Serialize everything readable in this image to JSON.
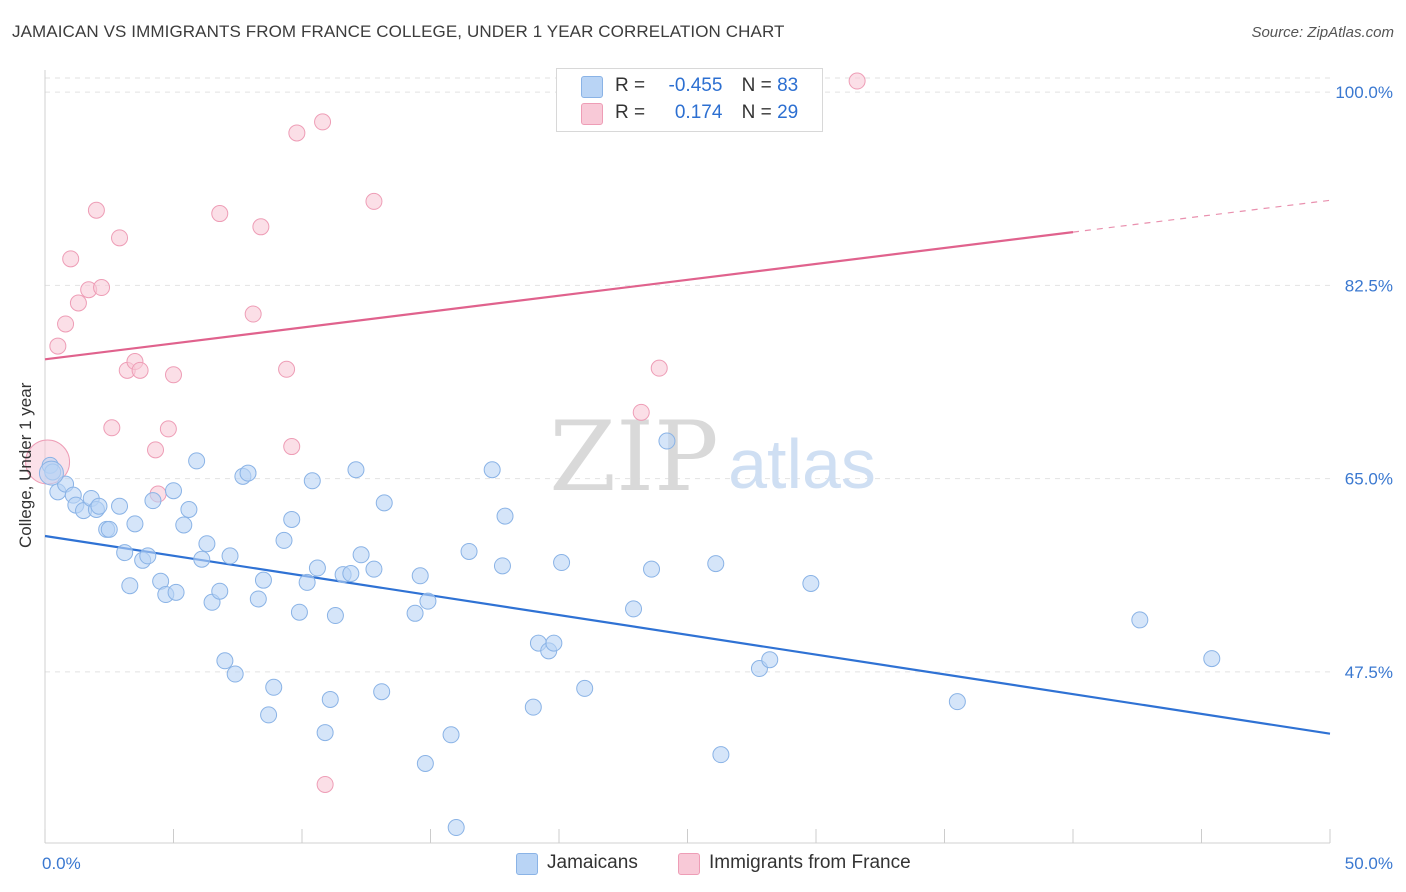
{
  "title": "JAMAICAN VS IMMIGRANTS FROM FRANCE COLLEGE, UNDER 1 YEAR CORRELATION CHART",
  "source": "Source: ZipAtlas.com",
  "watermark": {
    "zip": "ZIP",
    "atlas": "atlas"
  },
  "legend": {
    "r_label": "R =",
    "n_label": "N =",
    "jamaicans": {
      "r": "-0.455",
      "n": "83"
    },
    "france": {
      "r": "0.174",
      "n": "29"
    }
  },
  "colors": {
    "blue_fill": "#b9d4f5",
    "blue_stroke": "#8ab3e6",
    "blue_line": "#2f72d4",
    "pink_fill": "#f8c9d7",
    "pink_stroke": "#ee9db6",
    "pink_line": "#e0628d",
    "axis_label": "#3a78d0",
    "grid": "#e2e2e2"
  },
  "chart_data": {
    "type": "scatter",
    "title": "JAMAICAN VS IMMIGRANTS FROM FRANCE COLLEGE, UNDER 1 YEAR CORRELATION CHART",
    "xlabel": "",
    "ylabel": "College, Under 1 year",
    "xlim": [
      0,
      50
    ],
    "ylim": [
      32,
      102
    ],
    "x_tick_labels": [
      "0.0%",
      "50.0%"
    ],
    "y_ticks": [
      47.5,
      65.0,
      82.5,
      100.0
    ],
    "y_tick_labels": [
      "47.5%",
      "65.0%",
      "82.5%",
      "100.0%"
    ],
    "legend_placement": "bottom",
    "series": [
      {
        "name": "Jamaicans",
        "r": -0.455,
        "n": 83,
        "trend": {
          "x": [
            0,
            50
          ],
          "y": [
            59.8,
            41.9
          ],
          "dashed_from": null
        },
        "points": [
          [
            0.2,
            66.2
          ],
          [
            0.3,
            65.6
          ],
          [
            0.5,
            63.8
          ],
          [
            0.8,
            64.5
          ],
          [
            1.1,
            63.5
          ],
          [
            1.2,
            62.6
          ],
          [
            1.5,
            62.1
          ],
          [
            1.8,
            63.2
          ],
          [
            2.0,
            62.2
          ],
          [
            2.1,
            62.5
          ],
          [
            2.4,
            60.4
          ],
          [
            2.5,
            60.4
          ],
          [
            2.9,
            62.5
          ],
          [
            3.1,
            58.3
          ],
          [
            3.3,
            55.3
          ],
          [
            3.5,
            60.9
          ],
          [
            3.8,
            57.6
          ],
          [
            4.0,
            58.0
          ],
          [
            4.2,
            63.0
          ],
          [
            4.5,
            55.7
          ],
          [
            4.7,
            54.5
          ],
          [
            5.1,
            54.7
          ],
          [
            5.0,
            63.9
          ],
          [
            5.4,
            60.8
          ],
          [
            5.6,
            62.2
          ],
          [
            5.9,
            66.6
          ],
          [
            6.1,
            57.7
          ],
          [
            6.3,
            59.1
          ],
          [
            6.5,
            53.8
          ],
          [
            6.8,
            54.8
          ],
          [
            7.0,
            48.5
          ],
          [
            7.2,
            58.0
          ],
          [
            7.4,
            47.3
          ],
          [
            7.7,
            65.2
          ],
          [
            7.9,
            65.5
          ],
          [
            8.3,
            54.1
          ],
          [
            8.5,
            55.8
          ],
          [
            8.7,
            43.6
          ],
          [
            8.9,
            46.1
          ],
          [
            9.3,
            59.4
          ],
          [
            9.6,
            61.3
          ],
          [
            9.9,
            52.9
          ],
          [
            10.2,
            55.6
          ],
          [
            10.4,
            64.8
          ],
          [
            10.6,
            56.9
          ],
          [
            10.9,
            42.0
          ],
          [
            11.1,
            45.0
          ],
          [
            11.3,
            52.6
          ],
          [
            11.6,
            56.3
          ],
          [
            11.9,
            56.4
          ],
          [
            12.1,
            65.8
          ],
          [
            12.3,
            58.1
          ],
          [
            12.8,
            56.8
          ],
          [
            13.1,
            45.7
          ],
          [
            13.2,
            62.8
          ],
          [
            14.4,
            52.8
          ],
          [
            14.6,
            56.2
          ],
          [
            14.8,
            39.2
          ],
          [
            14.9,
            53.9
          ],
          [
            15.8,
            41.8
          ],
          [
            16.0,
            33.4
          ],
          [
            16.5,
            58.4
          ],
          [
            17.4,
            65.8
          ],
          [
            17.9,
            61.6
          ],
          [
            17.8,
            57.1
          ],
          [
            19.0,
            44.3
          ],
          [
            19.2,
            50.1
          ],
          [
            19.6,
            49.4
          ],
          [
            19.8,
            50.1
          ],
          [
            20.1,
            57.4
          ],
          [
            21.0,
            46.0
          ],
          [
            22.9,
            53.2
          ],
          [
            23.6,
            56.8
          ],
          [
            24.2,
            68.4
          ],
          [
            26.1,
            57.3
          ],
          [
            26.3,
            40.0
          ],
          [
            27.8,
            47.8
          ],
          [
            28.2,
            48.6
          ],
          [
            29.8,
            55.5
          ],
          [
            35.5,
            44.8
          ],
          [
            42.6,
            52.2
          ],
          [
            45.4,
            48.7
          ],
          [
            0.25,
            65.5
          ]
        ]
      },
      {
        "name": "Immigrants from France",
        "r": 0.174,
        "n": 29,
        "trend": {
          "x": [
            0,
            50
          ],
          "y": [
            75.8,
            90.2
          ],
          "dashed_from": 40
        },
        "points": [
          [
            0.1,
            66.5
          ],
          [
            0.5,
            77.0
          ],
          [
            0.8,
            79.0
          ],
          [
            1.0,
            84.9
          ],
          [
            1.3,
            80.9
          ],
          [
            1.7,
            82.1
          ],
          [
            2.0,
            89.3
          ],
          [
            2.2,
            82.3
          ],
          [
            2.6,
            69.6
          ],
          [
            2.9,
            86.8
          ],
          [
            3.2,
            74.8
          ],
          [
            3.5,
            75.6
          ],
          [
            3.7,
            74.8
          ],
          [
            4.3,
            67.6
          ],
          [
            4.4,
            63.6
          ],
          [
            4.8,
            69.5
          ],
          [
            5.0,
            74.4
          ],
          [
            6.8,
            89.0
          ],
          [
            8.1,
            79.9
          ],
          [
            8.4,
            87.8
          ],
          [
            9.4,
            74.9
          ],
          [
            9.6,
            67.9
          ],
          [
            9.8,
            96.3
          ],
          [
            10.8,
            97.3
          ],
          [
            10.9,
            37.3
          ],
          [
            12.8,
            90.1
          ],
          [
            23.2,
            71.0
          ],
          [
            23.9,
            75.0
          ],
          [
            31.6,
            101.0
          ]
        ]
      }
    ]
  }
}
